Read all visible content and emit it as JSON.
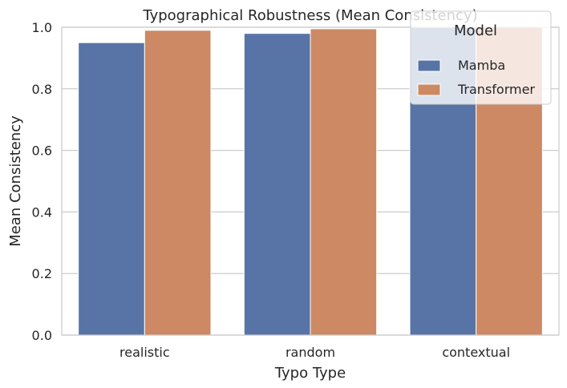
{
  "chart_data": {
    "type": "bar",
    "title": "Typographical Robustness (Mean Consistency)",
    "xlabel": "Typo Type",
    "ylabel": "Mean Consistency",
    "categories": [
      "realistic",
      "random",
      "contextual"
    ],
    "series": [
      {
        "name": "Mamba",
        "color": "#5874a6",
        "values": [
          0.95,
          0.98,
          1.0
        ]
      },
      {
        "name": "Transformer",
        "color": "#cc8963",
        "values": [
          0.99,
          0.995,
          1.0
        ]
      }
    ],
    "ylim": [
      0,
      1.0
    ],
    "yticks": [
      0.0,
      0.2,
      0.4,
      0.6,
      0.8,
      1.0
    ],
    "ytick_labels": [
      "0.0",
      "0.2",
      "0.4",
      "0.6",
      "0.8",
      "1.0"
    ],
    "grid": "y",
    "legend": {
      "title": "Model",
      "placement": "top-right"
    }
  }
}
